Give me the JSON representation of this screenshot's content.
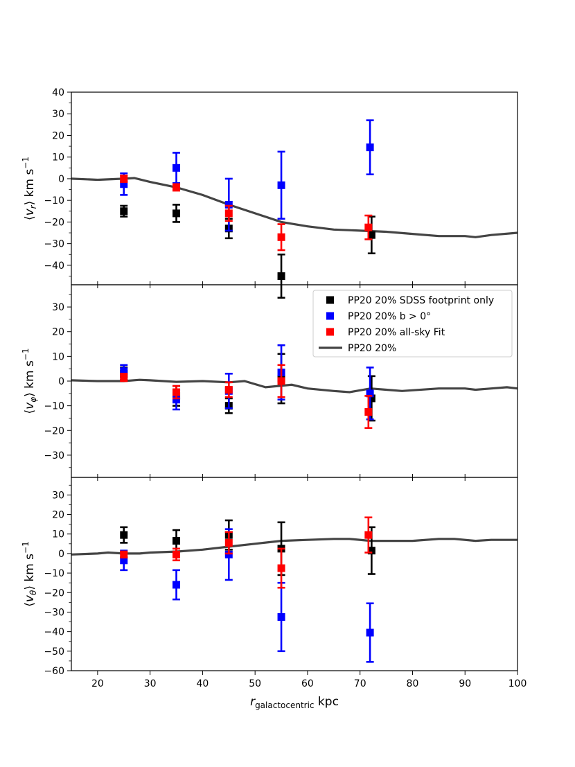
{
  "chart_data": {
    "type": "scatter",
    "shared_x": {
      "label_main": "r",
      "label_sub": "galactocentric",
      "label_unit": " kpc",
      "lim": [
        15,
        100
      ],
      "ticks": [
        20,
        30,
        40,
        50,
        60,
        70,
        80,
        90,
        100
      ]
    },
    "legend": {
      "placement": "upper right of middle panel",
      "entries": [
        {
          "label": "PP20 20% SDSS footprint only",
          "marker": "square",
          "color": "#000000"
        },
        {
          "label": "PP20 20% b > 0°",
          "marker": "square",
          "color": "#0000ff"
        },
        {
          "label": "PP20 20% all-sky Fit",
          "marker": "square",
          "color": "#ff0000"
        },
        {
          "label": "PP20 20%",
          "marker": "line",
          "color": "#444444"
        }
      ]
    },
    "panels": [
      {
        "name": "vr",
        "ylabel": "⟨v_r⟩ km s^-1",
        "ylabel_sym": "v",
        "ylabel_sub": "r",
        "ylabel_unit": " km s",
        "ylabel_sup": "−1",
        "ylim": [
          -49,
          40
        ],
        "yticks": [
          -40,
          -30,
          -20,
          -10,
          0,
          10,
          20,
          30,
          40
        ],
        "yticklabels": [
          "−40",
          "−30",
          "−20",
          "−10",
          "0",
          "10",
          "20",
          "30",
          "40"
        ],
        "series": [
          {
            "name": "PP20 20% SDSS footprint only",
            "color": "#000000",
            "points": [
              {
                "x": 25,
                "y": -15,
                "err": 2.5
              },
              {
                "x": 35,
                "y": -16,
                "err": 4
              },
              {
                "x": 45,
                "y": -23,
                "err": 4.5
              },
              {
                "x": 55,
                "y": -45,
                "err": 10
              },
              {
                "x": 72.2,
                "y": -26,
                "err": 8.5
              }
            ]
          },
          {
            "name": "PP20 20% b > 0°",
            "color": "#0000ff",
            "points": [
              {
                "x": 25,
                "y": -2.5,
                "err": 5
              },
              {
                "x": 35,
                "y": 5,
                "err": 7
              },
              {
                "x": 45,
                "y": -12,
                "err": 12
              },
              {
                "x": 55,
                "y": -3,
                "err": 15.5
              },
              {
                "x": 71.9,
                "y": 14.5,
                "err": 12.5
              }
            ]
          },
          {
            "name": "PP20 20% all-sky Fit",
            "color": "#ff0000",
            "points": [
              {
                "x": 25,
                "y": 0,
                "err": 1.5
              },
              {
                "x": 35,
                "y": -4,
                "err": 1.5
              },
              {
                "x": 45,
                "y": -16,
                "err": 3.5
              },
              {
                "x": 55,
                "y": -27,
                "err": 6
              },
              {
                "x": 71.6,
                "y": -22.5,
                "err": 5.5
              }
            ]
          }
        ],
        "line": [
          [
            15,
            0
          ],
          [
            20,
            -0.5
          ],
          [
            25,
            0
          ],
          [
            27,
            0.3
          ],
          [
            30,
            -1.5
          ],
          [
            35,
            -4
          ],
          [
            40,
            -7.5
          ],
          [
            45,
            -12
          ],
          [
            50,
            -16
          ],
          [
            55,
            -20
          ],
          [
            60,
            -22
          ],
          [
            65,
            -23.5
          ],
          [
            70,
            -24
          ],
          [
            75,
            -24.5
          ],
          [
            80,
            -25.5
          ],
          [
            85,
            -26.5
          ],
          [
            90,
            -26.5
          ],
          [
            92,
            -27
          ],
          [
            95,
            -26
          ],
          [
            100,
            -25
          ]
        ]
      },
      {
        "name": "vphi",
        "ylabel": "⟨v_φ⟩ km s^-1",
        "ylabel_sym": "v",
        "ylabel_sub": "φ",
        "ylabel_unit": " km s",
        "ylabel_sup": "−1",
        "ylim": [
          -39,
          39
        ],
        "yticks": [
          -30,
          -20,
          -10,
          0,
          10,
          20,
          30
        ],
        "yticklabels": [
          "−30",
          "−20",
          "−10",
          "0",
          "10",
          "20",
          "30"
        ],
        "series": [
          {
            "name": "PP20 20% SDSS footprint only",
            "color": "#000000",
            "points": [
              {
                "x": 25,
                "y": 3,
                "err": 2.5
              },
              {
                "x": 35,
                "y": -6,
                "err": 4
              },
              {
                "x": 45,
                "y": -10,
                "err": 3
              },
              {
                "x": 55,
                "y": 1,
                "err": 10
              },
              {
                "x": 72.2,
                "y": -7,
                "err": 9
              }
            ]
          },
          {
            "name": "PP20 20% b > 0°",
            "color": "#0000ff",
            "points": [
              {
                "x": 25,
                "y": 4,
                "err": 2.5
              },
              {
                "x": 35,
                "y": -7.5,
                "err": 4
              },
              {
                "x": 45,
                "y": -4,
                "err": 7
              },
              {
                "x": 55,
                "y": 3.5,
                "err": 11
              },
              {
                "x": 71.9,
                "y": -5,
                "err": 10.5
              }
            ]
          },
          {
            "name": "PP20 20% all-sky Fit",
            "color": "#ff0000",
            "points": [
              {
                "x": 25,
                "y": 1.5,
                "err": 1.5
              },
              {
                "x": 35,
                "y": -4.5,
                "err": 2.5
              },
              {
                "x": 45,
                "y": -3.5,
                "err": 3
              },
              {
                "x": 55,
                "y": 0,
                "err": 6.5
              },
              {
                "x": 71.6,
                "y": -12.5,
                "err": 6.5
              }
            ]
          }
        ],
        "line": [
          [
            15,
            0.3
          ],
          [
            20,
            0
          ],
          [
            25,
            0
          ],
          [
            28,
            0.5
          ],
          [
            30,
            0.3
          ],
          [
            35,
            -0.3
          ],
          [
            40,
            0
          ],
          [
            45,
            -0.5
          ],
          [
            48,
            0
          ],
          [
            52,
            -2.5
          ],
          [
            57,
            -1.5
          ],
          [
            60,
            -3
          ],
          [
            65,
            -4
          ],
          [
            68,
            -4.5
          ],
          [
            72,
            -3
          ],
          [
            75,
            -3.5
          ],
          [
            78,
            -4
          ],
          [
            85,
            -3
          ],
          [
            90,
            -3
          ],
          [
            92,
            -3.5
          ],
          [
            95,
            -3
          ],
          [
            98,
            -2.5
          ],
          [
            100,
            -3
          ]
        ]
      },
      {
        "name": "vtheta",
        "ylabel": "⟨v_θ⟩ km s^-1",
        "ylabel_sym": "v",
        "ylabel_sub": "θ",
        "ylabel_unit": " km s",
        "ylabel_sup": "−1",
        "ylim": [
          -60,
          39
        ],
        "yticks": [
          -60,
          -50,
          -40,
          -30,
          -20,
          -10,
          0,
          10,
          20,
          30
        ],
        "yticklabels": [
          "−60",
          "−50",
          "−40",
          "−30",
          "−20",
          "−10",
          "0",
          "10",
          "20",
          "30"
        ],
        "series": [
          {
            "name": "PP20 20% SDSS footprint only",
            "color": "#000000",
            "points": [
              {
                "x": 25,
                "y": 9.5,
                "err": 4
              },
              {
                "x": 35,
                "y": 6.5,
                "err": 5.5
              },
              {
                "x": 45,
                "y": 9.5,
                "err": 7.5
              },
              {
                "x": 55,
                "y": 2.5,
                "err": 13.5
              },
              {
                "x": 72.2,
                "y": 1.5,
                "err": 12
              }
            ]
          },
          {
            "name": "PP20 20% b > 0°",
            "color": "#0000ff",
            "points": [
              {
                "x": 25,
                "y": -3.5,
                "err": 5
              },
              {
                "x": 35,
                "y": -16,
                "err": 7.5
              },
              {
                "x": 45,
                "y": -0.5,
                "err": 13
              },
              {
                "x": 55,
                "y": -32.5,
                "err": 17.5
              },
              {
                "x": 71.9,
                "y": -40.5,
                "err": 15
              }
            ]
          },
          {
            "name": "PP20 20% all-sky Fit",
            "color": "#ff0000",
            "points": [
              {
                "x": 25,
                "y": -0.5,
                "err": 1.5
              },
              {
                "x": 35,
                "y": -0.5,
                "err": 3
              },
              {
                "x": 45,
                "y": 5.5,
                "err": 5.5
              },
              {
                "x": 55,
                "y": -7.5,
                "err": 10
              },
              {
                "x": 71.6,
                "y": 9.5,
                "err": 9
              }
            ]
          }
        ],
        "line": [
          [
            15,
            -0.5
          ],
          [
            20,
            0
          ],
          [
            22,
            0.5
          ],
          [
            25,
            0
          ],
          [
            28,
            0
          ],
          [
            30,
            0.5
          ],
          [
            35,
            1
          ],
          [
            40,
            2
          ],
          [
            45,
            3.5
          ],
          [
            50,
            5
          ],
          [
            55,
            6.5
          ],
          [
            60,
            7
          ],
          [
            65,
            7.5
          ],
          [
            68,
            7.5
          ],
          [
            72,
            6.5
          ],
          [
            75,
            6.5
          ],
          [
            80,
            6.5
          ],
          [
            85,
            7.5
          ],
          [
            88,
            7.5
          ],
          [
            92,
            6.5
          ],
          [
            95,
            7
          ],
          [
            100,
            7
          ]
        ]
      }
    ]
  }
}
